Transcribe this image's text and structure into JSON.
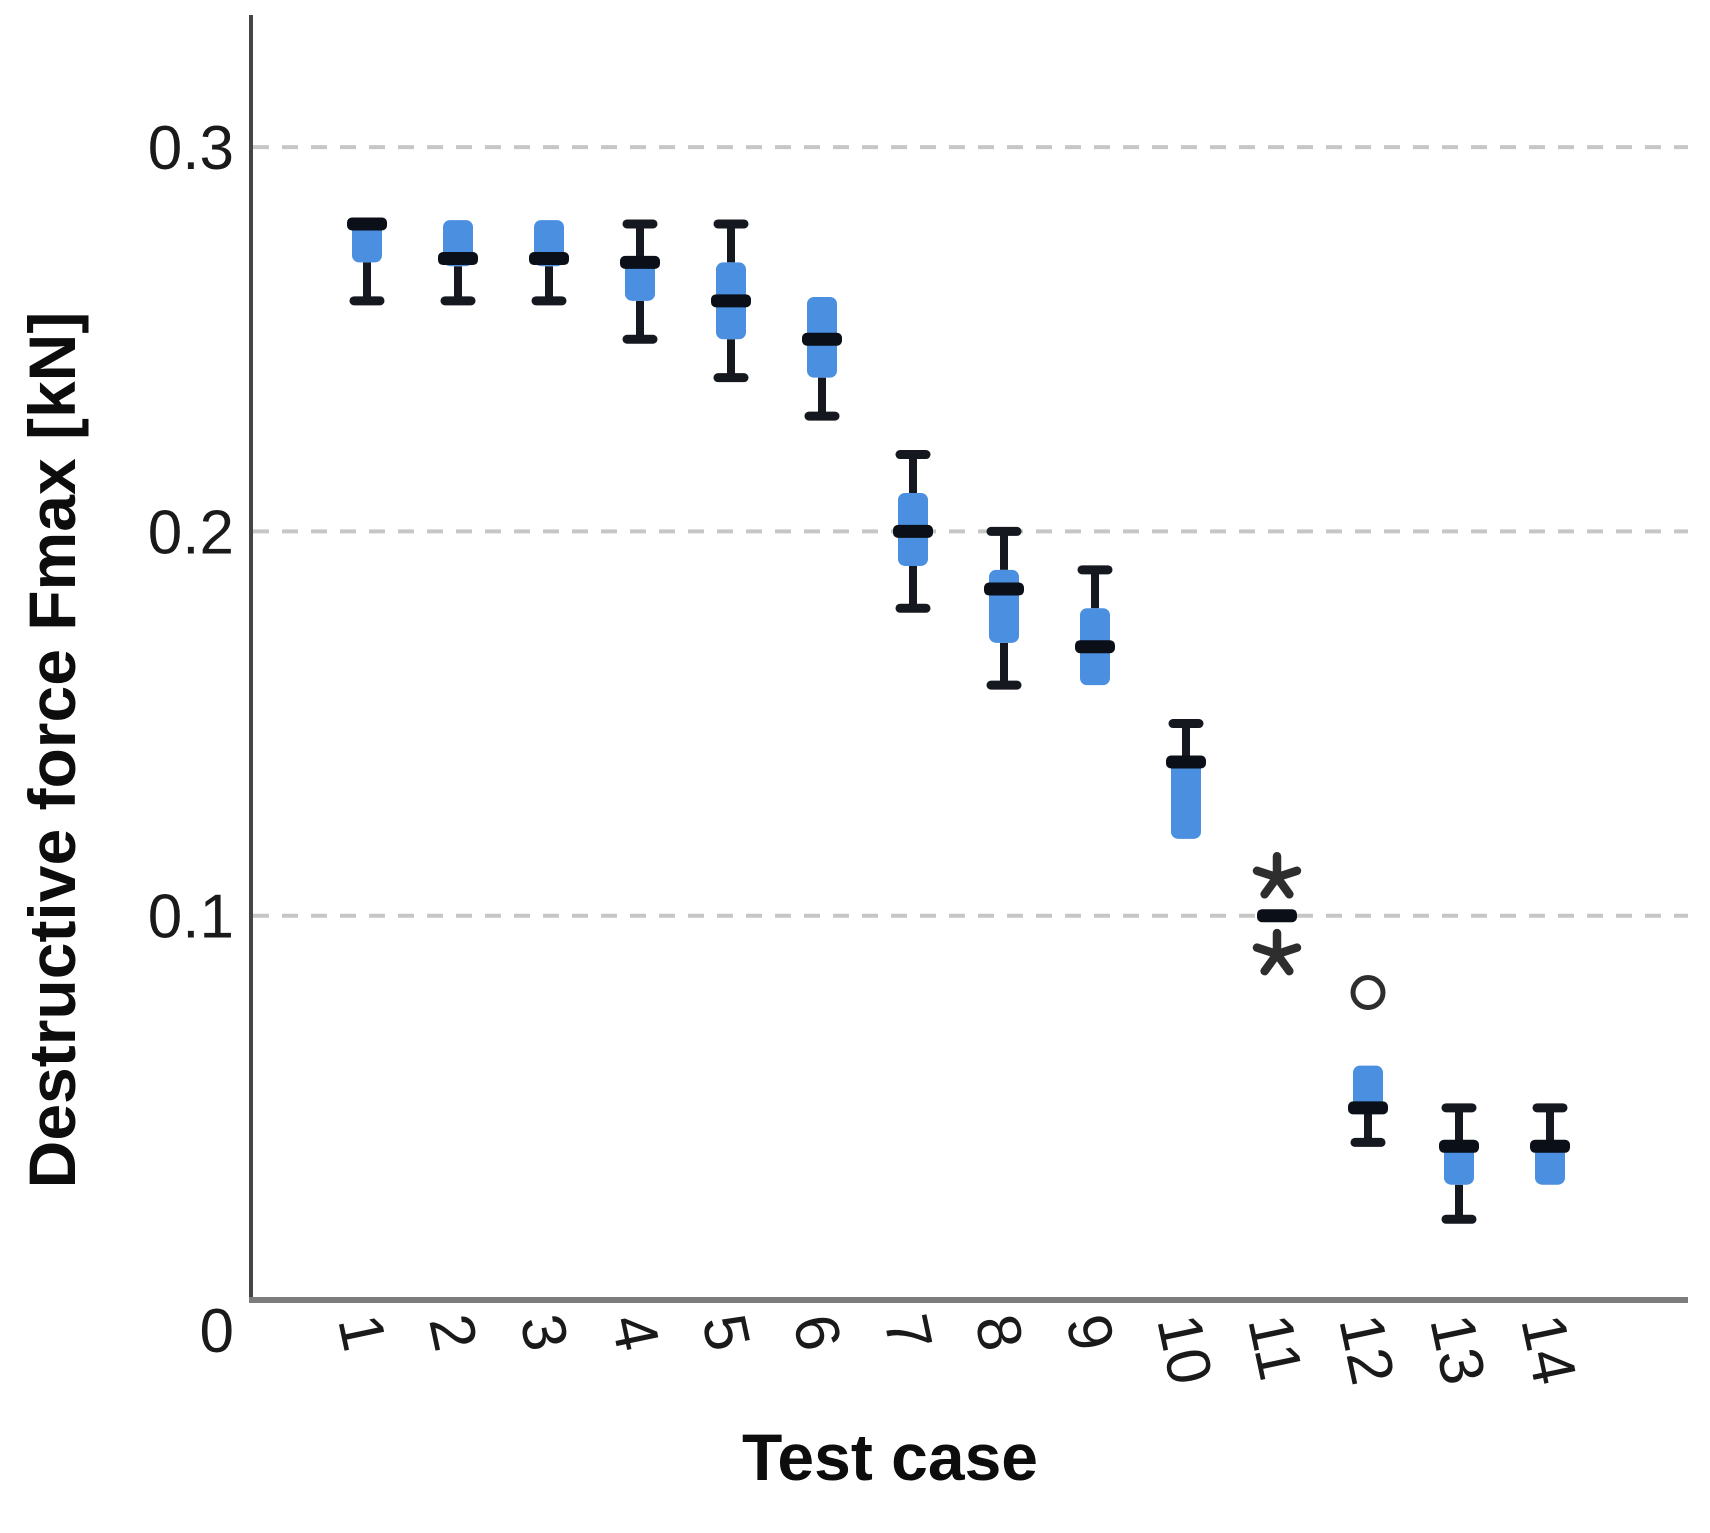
{
  "figure": {
    "background_color": "#ffffff"
  },
  "chart_data": {
    "type": "boxplot",
    "title": "",
    "xlabel": "Test case",
    "ylabel": "Destructive force Fmax [kN]",
    "categories": [
      "1",
      "2",
      "3",
      "4",
      "5",
      "6",
      "7",
      "8",
      "9",
      "10",
      "11",
      "12",
      "13",
      "14"
    ],
    "yticks": [
      {
        "value": 0,
        "label": "0"
      },
      {
        "value": 0.1,
        "label": "0.1"
      },
      {
        "value": 0.2,
        "label": "0.2"
      },
      {
        "value": 0.3,
        "label": "0.3"
      }
    ],
    "ylim": [
      0,
      0.33
    ],
    "grid": {
      "show": true,
      "style": "dashed",
      "color": "#c6c6c6",
      "gridlines_at": [
        0.1,
        0.2,
        0.3
      ]
    },
    "legend": {
      "show": false
    },
    "colors": {
      "box_fill": "#4a8fe0",
      "median": "#0b0f17",
      "whisker": "#15181f",
      "outlier": "#2e2e2e",
      "axis_y": "#454545",
      "axis_x": "#7c7c7c",
      "gridline": "#c6c6c6"
    },
    "series": [
      {
        "label": "1",
        "whisker_low": 0.26,
        "q1": 0.27,
        "median": 0.28,
        "q3": 0.28,
        "whisker_high": 0.28,
        "outliers": []
      },
      {
        "label": "2",
        "whisker_low": 0.26,
        "q1": 0.269,
        "median": 0.271,
        "q3": 0.281,
        "whisker_high": 0.281,
        "outliers": []
      },
      {
        "label": "3",
        "whisker_low": 0.26,
        "q1": 0.269,
        "median": 0.271,
        "q3": 0.281,
        "whisker_high": 0.281,
        "outliers": []
      },
      {
        "label": "4",
        "whisker_low": 0.25,
        "q1": 0.26,
        "median": 0.27,
        "q3": 0.27,
        "whisker_high": 0.28,
        "outliers": []
      },
      {
        "label": "5",
        "whisker_low": 0.24,
        "q1": 0.25,
        "median": 0.26,
        "q3": 0.27,
        "whisker_high": 0.28,
        "outliers": []
      },
      {
        "label": "6",
        "whisker_low": 0.23,
        "q1": 0.24,
        "median": 0.25,
        "q3": 0.261,
        "whisker_high": 0.261,
        "outliers": []
      },
      {
        "label": "7",
        "whisker_low": 0.18,
        "q1": 0.191,
        "median": 0.2,
        "q3": 0.21,
        "whisker_high": 0.22,
        "outliers": []
      },
      {
        "label": "8",
        "whisker_low": 0.16,
        "q1": 0.171,
        "median": 0.185,
        "q3": 0.19,
        "whisker_high": 0.2,
        "outliers": []
      },
      {
        "label": "9",
        "whisker_low": 0.16,
        "q1": 0.16,
        "median": 0.17,
        "q3": 0.18,
        "whisker_high": 0.19,
        "outliers": []
      },
      {
        "label": "10",
        "whisker_low": 0.12,
        "q1": 0.12,
        "median": 0.14,
        "q3": 0.14,
        "whisker_high": 0.15,
        "outliers": []
      },
      {
        "label": "11",
        "whisker_low": 0.1,
        "q1": 0.1,
        "median": 0.1,
        "q3": 0.1,
        "whisker_high": 0.1,
        "outliers": [
          {
            "value": 0.11,
            "marker": "asterisk"
          },
          {
            "value": 0.09,
            "marker": "asterisk"
          }
        ]
      },
      {
        "label": "12",
        "whisker_low": 0.041,
        "q1": 0.05,
        "median": 0.05,
        "q3": 0.061,
        "whisker_high": 0.061,
        "outliers": [
          {
            "value": 0.08,
            "marker": "circle"
          }
        ]
      },
      {
        "label": "13",
        "whisker_low": 0.021,
        "q1": 0.03,
        "median": 0.04,
        "q3": 0.04,
        "whisker_high": 0.05,
        "outliers": []
      },
      {
        "label": "14",
        "whisker_low": 0.03,
        "q1": 0.03,
        "median": 0.04,
        "q3": 0.04,
        "whisker_high": 0.05,
        "outliers": []
      }
    ]
  }
}
